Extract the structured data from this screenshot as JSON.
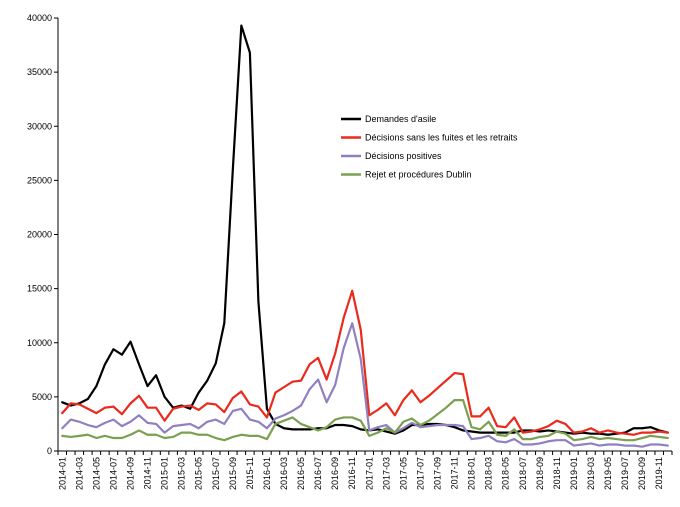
{
  "chart_data": {
    "type": "line",
    "title": "",
    "xlabel": "",
    "ylabel": "",
    "ylim": [
      0,
      40000
    ],
    "yticks": [
      0,
      5000,
      10000,
      15000,
      20000,
      25000,
      30000,
      35000,
      40000
    ],
    "grid": false,
    "legend_position": "top-center",
    "x": [
      "2014-01",
      "2014-02",
      "2014-03",
      "2014-04",
      "2014-05",
      "2014-06",
      "2014-07",
      "2014-08",
      "2014-09",
      "2014-10",
      "2014-11",
      "2014-12",
      "2015-01",
      "2015-02",
      "2015-03",
      "2015-04",
      "2015-05",
      "2015-06",
      "2015-07",
      "2015-08",
      "2015-09",
      "2015-10",
      "2015-11",
      "2015-12",
      "2016-01",
      "2016-02",
      "2016-03",
      "2016-04",
      "2016-05",
      "2016-06",
      "2016-07",
      "2016-08",
      "2016-09",
      "2016-10",
      "2016-11",
      "2016-12",
      "2017-01",
      "2017-02",
      "2017-03",
      "2017-04",
      "2017-05",
      "2017-06",
      "2017-07",
      "2017-08",
      "2017-09",
      "2017-10",
      "2017-11",
      "2017-12",
      "2018-01",
      "2018-02",
      "2018-03",
      "2018-04",
      "2018-05",
      "2018-06",
      "2018-07",
      "2018-08",
      "2018-09",
      "2018-10",
      "2018-11",
      "2018-12",
      "2019-01",
      "2019-02",
      "2019-03",
      "2019-04",
      "2019-05",
      "2019-06",
      "2019-07",
      "2019-08",
      "2019-09",
      "2019-10",
      "2019-11",
      "2019-12"
    ],
    "xtick_labels": [
      "2014-01",
      "2014-03",
      "2014-05",
      "2014-07",
      "2014-09",
      "2014-11",
      "2015-01",
      "2015-03",
      "2015-05",
      "2015-07",
      "2015-09",
      "2015-11",
      "2016-01",
      "2016-03",
      "2016-05",
      "2016-07",
      "2016-09",
      "2016-11",
      "2017-01",
      "2017-03",
      "2017-05",
      "2017-07",
      "2017-09",
      "2017-11",
      "2018-01",
      "2018-03",
      "2018-05",
      "2018-07",
      "2018-09",
      "2018-11",
      "2019-01",
      "2019-03",
      "2019-05",
      "2019-07",
      "2019-09",
      "2019-11"
    ],
    "series": [
      {
        "name": "Demandes d'asile",
        "color": "#000000",
        "values": [
          4500,
          4200,
          4400,
          4800,
          6000,
          8000,
          9400,
          8900,
          10100,
          8000,
          6000,
          7000,
          5000,
          4000,
          4200,
          3900,
          5400,
          6500,
          8100,
          11800,
          26000,
          39300,
          36800,
          13800,
          3900,
          2500,
          2100,
          2000,
          2000,
          2000,
          2100,
          2100,
          2400,
          2400,
          2300,
          2000,
          1900,
          2000,
          1800,
          1600,
          1900,
          2400,
          2400,
          2500,
          2500,
          2400,
          2200,
          1900,
          1800,
          1700,
          1700,
          1700,
          1700,
          1700,
          1900,
          1900,
          1800,
          1900,
          1800,
          1700,
          1600,
          1700,
          1600,
          1600,
          1500,
          1600,
          1700,
          2100,
          2100,
          2200,
          1900,
          1700
        ]
      },
      {
        "name": "Décisions sans les fuites et les retraits",
        "color": "#ea2a1c",
        "values": [
          3500,
          4400,
          4300,
          3900,
          3500,
          4000,
          4100,
          3400,
          4400,
          5100,
          4000,
          4000,
          2800,
          3900,
          4100,
          4200,
          3800,
          4400,
          4300,
          3600,
          4900,
          5500,
          4300,
          4100,
          3100,
          5400,
          5900,
          6400,
          6500,
          8000,
          8600,
          6600,
          9000,
          12300,
          14800,
          11200,
          3300,
          3800,
          4400,
          3300,
          4700,
          5600,
          4500,
          5100,
          5800,
          6500,
          7200,
          7100,
          3200,
          3200,
          4000,
          2300,
          2200,
          3100,
          1700,
          1800,
          2000,
          2300,
          2800,
          2500,
          1700,
          1800,
          2100,
          1700,
          1900,
          1700,
          1600,
          1500,
          1700,
          1700,
          1800,
          1700
        ]
      },
      {
        "name": "Décisions positives",
        "color": "#9080c0",
        "values": [
          2100,
          2900,
          2700,
          2400,
          2200,
          2600,
          2900,
          2300,
          2700,
          3300,
          2600,
          2500,
          1700,
          2300,
          2400,
          2500,
          2100,
          2700,
          2900,
          2500,
          3700,
          3900,
          2900,
          2700,
          2100,
          3000,
          3300,
          3700,
          4200,
          5700,
          6600,
          4500,
          6100,
          9500,
          11800,
          8500,
          1900,
          2200,
          2400,
          1700,
          2100,
          2600,
          2200,
          2300,
          2400,
          2400,
          2400,
          2300,
          1100,
          1200,
          1400,
          900,
          800,
          1100,
          600,
          600,
          700,
          900,
          1000,
          1000,
          500,
          600,
          700,
          500,
          600,
          600,
          500,
          500,
          400,
          600,
          600,
          500
        ]
      },
      {
        "name": "Rejet et procédures Dublin",
        "color": "#7aa050",
        "values": [
          1400,
          1300,
          1400,
          1500,
          1200,
          1400,
          1200,
          1200,
          1500,
          1900,
          1500,
          1500,
          1200,
          1300,
          1700,
          1700,
          1500,
          1500,
          1200,
          1000,
          1300,
          1500,
          1400,
          1400,
          1100,
          2500,
          2800,
          3100,
          2500,
          2200,
          1900,
          2200,
          2900,
          3100,
          3100,
          2800,
          1400,
          1700,
          2100,
          1700,
          2700,
          3000,
          2400,
          2800,
          3400,
          4000,
          4700,
          4700,
          2200,
          2000,
          2700,
          1500,
          1400,
          2000,
          1100,
          1100,
          1300,
          1400,
          1800,
          1600,
          1000,
          1100,
          1300,
          1100,
          1200,
          1100,
          1000,
          1000,
          1200,
          1400,
          1300,
          1200
        ]
      }
    ]
  }
}
